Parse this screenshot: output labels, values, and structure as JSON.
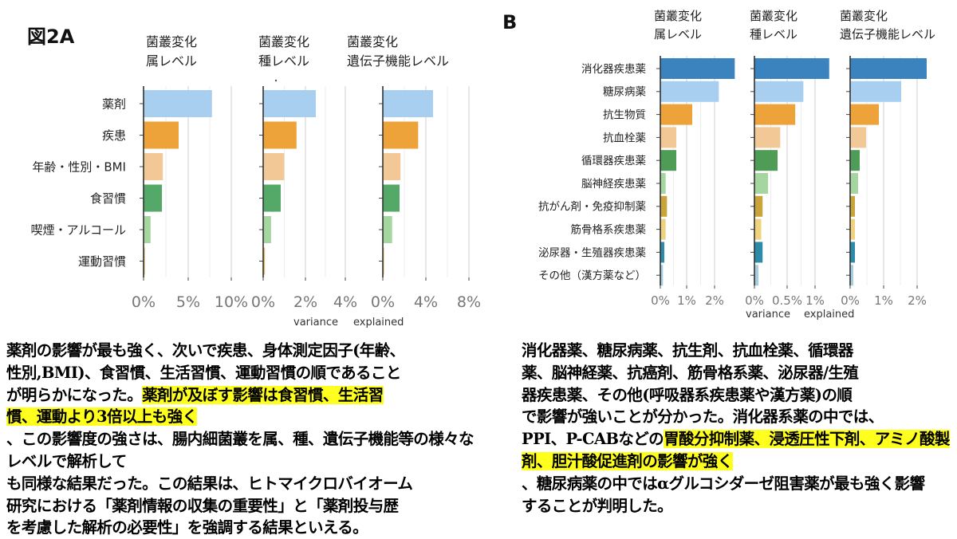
{
  "figure_a": {
    "label": "図2A",
    "panel_titles": [
      [
        "菌叢変化",
        "属レベル"
      ],
      [
        "菌叢変化",
        "種レベル"
      ],
      [
        "菌叢変化",
        "遺伝子機能レベル"
      ]
    ],
    "x_axis_label": [
      "variance",
      "explained"
    ]
  },
  "figure_b": {
    "label": "B",
    "panel_titles": [
      [
        "菌叢変化",
        "属レベル"
      ],
      [
        "菌叢変化",
        "種レベル"
      ],
      [
        "菌叢変化",
        "遺伝子機能レベル"
      ]
    ],
    "x_axis_label": [
      "variance",
      "explained"
    ]
  },
  "colors": {
    "A": [
      "#a9cff0",
      "#eda23a",
      "#f3c897",
      "#55a968",
      "#a5d6a0",
      "#e0be6c"
    ],
    "B": [
      "#3a83bf",
      "#a9cff0",
      "#eda23a",
      "#f3c897",
      "#4e9c55",
      "#a5d6a0",
      "#c9a43b",
      "#eed27e",
      "#2b8ba8",
      "#a7cde0"
    ]
  },
  "chart_data": [
    {
      "type": "bar",
      "orientation": "horizontal",
      "panel": "A-1",
      "title": "菌叢変化 属レベル",
      "categories": [
        "薬剤",
        "疾患",
        "年齢・性別・BMI",
        "食習慣",
        "喫煙・アルコール",
        "運動習慣"
      ],
      "values": [
        7.8,
        4.0,
        2.2,
        2.1,
        0.8,
        0.15
      ],
      "ticks": [
        "0%",
        "5%",
        "10%"
      ],
      "xlim": [
        0,
        10
      ],
      "xlabel": "variance explained"
    },
    {
      "type": "bar",
      "orientation": "horizontal",
      "panel": "A-2",
      "title": "菌叢変化 種レベル",
      "categories": [
        "薬剤",
        "疾患",
        "年齢・性別・BMI",
        "食習慣",
        "喫煙・アルコール",
        "運動習慣"
      ],
      "values": [
        3.0,
        1.9,
        1.2,
        1.0,
        0.45,
        0.1
      ],
      "ticks": [
        "0%",
        "2%",
        "4%"
      ],
      "xlim": [
        0,
        5
      ],
      "xlabel": "variance explained"
    },
    {
      "type": "bar",
      "orientation": "horizontal",
      "panel": "A-3",
      "title": "菌叢変化 遺伝子機能レベル",
      "categories": [
        "薬剤",
        "疾患",
        "年齢・性別・BMI",
        "食習慣",
        "喫煙・アルコール",
        "運動習慣"
      ],
      "values": [
        5.4,
        3.8,
        1.9,
        1.8,
        1.0,
        0.1
      ],
      "ticks": [
        "0%",
        "4%",
        "8%"
      ],
      "xlim": [
        0,
        9
      ],
      "xlabel": "variance explained"
    },
    {
      "type": "bar",
      "orientation": "horizontal",
      "panel": "B-1",
      "title": "菌叢変化 属レベル",
      "categories": [
        "消化器疾患薬",
        "糖尿病薬",
        "抗生物質",
        "抗血栓薬",
        "循環器疾患薬",
        "脳神経疾患薬",
        "抗がん剤・免疫抑制薬",
        "筋骨格系疾患薬",
        "泌尿器・生殖器疾患薬",
        "その他（漢方薬など）"
      ],
      "values": [
        2.8,
        2.2,
        1.2,
        0.6,
        0.6,
        0.2,
        0.25,
        0.2,
        0.15,
        0.1
      ],
      "ticks": [
        "0%",
        "1%",
        "2%"
      ],
      "xlim": [
        0,
        3
      ],
      "xlabel": "variance explained"
    },
    {
      "type": "bar",
      "orientation": "horizontal",
      "panel": "B-2",
      "title": "菌叢変化 種レベル",
      "categories": [
        "消化器疾患薬",
        "糖尿病薬",
        "抗生物質",
        "抗血栓薬",
        "循環器疾患薬",
        "脳神経疾患薬",
        "抗がん剤・免疫抑制薬",
        "筋骨格系疾患薬",
        "泌尿器・生殖器疾患薬",
        "その他（漢方薬など）"
      ],
      "values": [
        1.1,
        0.72,
        0.6,
        0.38,
        0.34,
        0.2,
        0.12,
        0.1,
        0.12,
        0.06
      ],
      "ticks": [
        "0%",
        "0.5%",
        "1%"
      ],
      "xlim": [
        0,
        1.15
      ],
      "xlabel": "variance explained"
    },
    {
      "type": "bar",
      "orientation": "horizontal",
      "panel": "B-3",
      "title": "菌叢変化 遺伝子機能レベル",
      "categories": [
        "消化器疾患薬",
        "糖尿病薬",
        "抗生物質",
        "抗血栓薬",
        "循環器疾患薬",
        "脳神経疾患薬",
        "抗がん剤・免疫抑制薬",
        "筋骨格系疾患薬",
        "泌尿器・生殖器疾患薬",
        "その他（漢方薬など）"
      ],
      "values": [
        2.4,
        1.6,
        0.9,
        0.5,
        0.3,
        0.25,
        0.15,
        0.15,
        0.15,
        0.1
      ],
      "ticks": [
        "0%",
        "1%",
        "2%"
      ],
      "xlim": [
        0,
        2.5
      ],
      "xlabel": "variance explained"
    }
  ],
  "text_a": [
    {
      "t": "薬剤の影響が最も強く、次いで疾患、身体測定因子(年齢、",
      "h": false
    },
    {
      "t": "性別,BMI)、食習慣、生活習慣、運動習慣の順であること",
      "h": false
    },
    {
      "t": "が明らかになった。",
      "h": false
    },
    {
      "t": "薬剤が及ぼす影響は食習慣、生活習",
      "h": true
    },
    {
      "t": "慣、運動より3倍以上も強く",
      "h": true
    },
    {
      "t": "、この影響度の強さは、腸内細",
      "h": false
    },
    {
      "t": "菌叢を属、種、遺伝子機能等の様々なレベルで解析して",
      "h": false
    },
    {
      "t": "も同様な結果だった。この結果は、ヒトマイクロバイオーム",
      "h": false
    },
    {
      "t": "研究における「薬剤情報の収集の重要性」と「薬剤投与歴",
      "h": false
    },
    {
      "t": "を考慮した解析の必要性」を強調する結果といえる。",
      "h": false
    }
  ],
  "text_b": [
    {
      "t": "消化器薬、糖尿病薬、抗生剤、抗血栓薬、循環器",
      "h": false
    },
    {
      "t": "薬、脳神経薬、抗癌剤、筋骨格系薬、泌尿器/生殖",
      "h": false
    },
    {
      "t": "器疾患薬、その他(呼吸器系疾患薬や漢方薬)の順",
      "h": false
    },
    {
      "t": "で影響が強いことが分かった。消化器系薬の中では、",
      "h": false
    },
    {
      "t": "PPI、P-CABなどの",
      "h": false
    },
    {
      "t": "胃酸分抑制薬、浸透圧性下剤、",
      "h": true
    },
    {
      "t": "アミノ酸製剤、胆汁酸促進剤の影響が強く",
      "h": true
    },
    {
      "t": "、糖尿病",
      "h": false
    },
    {
      "t": "薬の中ではαグルコシダーゼ阻害薬が最も強く影響",
      "h": false
    },
    {
      "t": "することが判明した。",
      "h": false
    }
  ]
}
